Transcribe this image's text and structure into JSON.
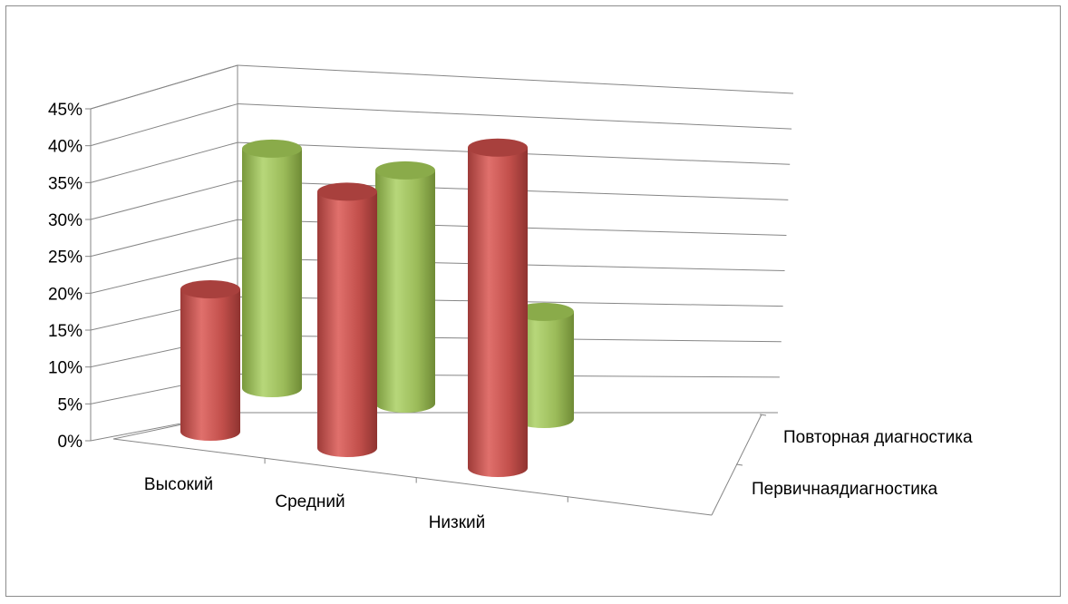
{
  "chart_data": {
    "type": "bar",
    "style": "3d-cylinder",
    "categories": [
      "Высокий",
      "Средний",
      "Низкий"
    ],
    "series": [
      {
        "name": "Первичнаядиагностика",
        "values": [
          20,
          36,
          45
        ],
        "color": "#c0504d"
      },
      {
        "name": "Повторная диагностика",
        "values": [
          38,
          37,
          17
        ],
        "color": "#9bbb59"
      }
    ],
    "y_tick_labels": [
      "0%",
      "5%",
      "10%",
      "15%",
      "20%",
      "25%",
      "30%",
      "35%",
      "40%",
      "45%"
    ],
    "ylim": [
      0,
      45
    ],
    "y_unit": "%",
    "grid": true,
    "title": "",
    "xlabel": "",
    "ylabel": ""
  }
}
